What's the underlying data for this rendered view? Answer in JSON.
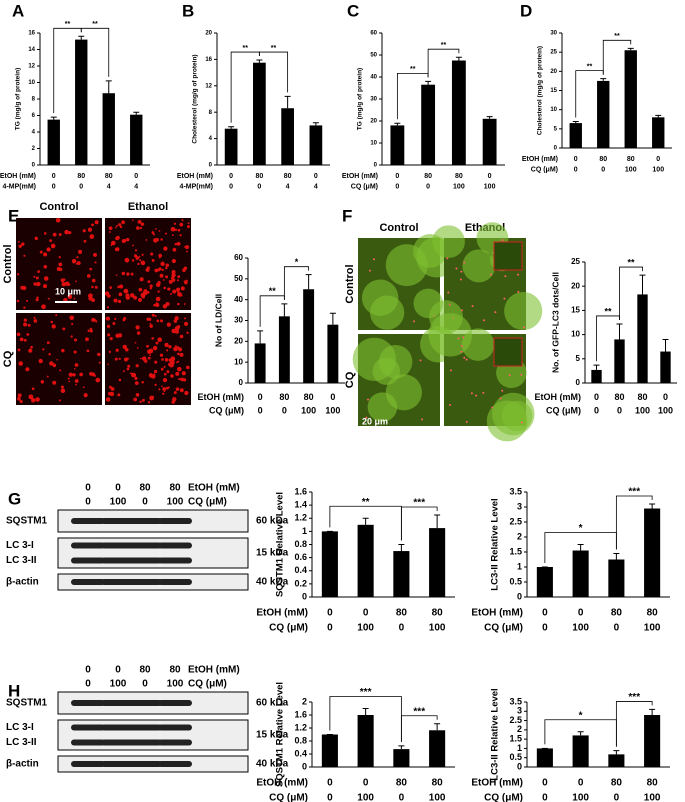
{
  "panels": [
    "A",
    "B",
    "C",
    "D",
    "E",
    "F",
    "G",
    "H"
  ],
  "chart_data": [
    {
      "type": "bar",
      "y_label": "TG (mg/g of protein)",
      "values": [
        5.5,
        15.2,
        8.7,
        6.1
      ],
      "errors": [
        0.3,
        0.4,
        1.5,
        0.3
      ],
      "color": "#000000",
      "ylim": [
        0,
        16
      ],
      "yticks": [
        0,
        2,
        4,
        6,
        8,
        10,
        12,
        14,
        16
      ],
      "conditions": [
        {
          "label": "EtOH (mM)",
          "values": [
            0,
            80,
            80,
            0
          ]
        },
        {
          "label": "4-MP(mM)",
          "values": [
            0,
            0,
            4,
            4
          ]
        }
      ],
      "significance": [
        {
          "text": "**",
          "between": [
            0,
            1
          ]
        },
        {
          "text": "**",
          "between": [
            1,
            2
          ]
        }
      ]
    },
    {
      "type": "bar",
      "y_label": "Cholesterol (mg/g of protein)",
      "values": [
        5.5,
        15.5,
        8.6,
        6.0
      ],
      "errors": [
        0.3,
        0.4,
        1.8,
        0.4
      ],
      "color": "#000000",
      "ylim": [
        0,
        20
      ],
      "yticks": [
        0,
        4,
        8,
        12,
        16,
        20
      ],
      "conditions": [
        {
          "label": "EtOH (mM)",
          "values": [
            0,
            80,
            80,
            0
          ]
        },
        {
          "label": "4-MP(mM)",
          "values": [
            0,
            0,
            4,
            4
          ]
        }
      ],
      "significance": [
        {
          "text": "**",
          "between": [
            0,
            1
          ]
        },
        {
          "text": "**",
          "between": [
            1,
            2
          ]
        }
      ]
    },
    {
      "type": "bar",
      "y_label": "TG (mg/g of protein)",
      "values": [
        18,
        36.5,
        47.5,
        21
      ],
      "errors": [
        1,
        1.5,
        1.5,
        1
      ],
      "color": "#000000",
      "ylim": [
        0,
        60
      ],
      "yticks": [
        0,
        10,
        20,
        30,
        40,
        50,
        60
      ],
      "conditions": [
        {
          "label": "EtOH (mM)",
          "values": [
            0,
            80,
            80,
            0
          ]
        },
        {
          "label": "CQ (μM)",
          "values": [
            0,
            0,
            100,
            100
          ]
        }
      ],
      "significance": [
        {
          "text": "**",
          "between": [
            0,
            1
          ]
        },
        {
          "text": "**",
          "between": [
            1,
            2
          ]
        }
      ]
    },
    {
      "type": "bar",
      "y_label": "Cholesterol (mg/g of protein)",
      "values": [
        6.5,
        17.5,
        25.5,
        8
      ],
      "errors": [
        0.4,
        0.6,
        0.5,
        0.5
      ],
      "color": "#000000",
      "ylim": [
        0,
        30
      ],
      "yticks": [
        0,
        5,
        10,
        15,
        20,
        25,
        30
      ],
      "conditions": [
        {
          "label": "EtOH (mM)",
          "values": [
            0,
            80,
            80,
            0
          ]
        },
        {
          "label": "CQ (μM)",
          "values": [
            0,
            0,
            100,
            100
          ]
        }
      ],
      "significance": [
        {
          "text": "**",
          "between": [
            0,
            1
          ]
        },
        {
          "text": "**",
          "between": [
            1,
            2
          ]
        }
      ]
    },
    {
      "type": "bar",
      "y_label": "No of LD/Cell",
      "values": [
        19,
        32,
        45,
        28
      ],
      "errors": [
        6,
        6,
        7,
        5.5
      ],
      "color": "#000000",
      "ylim": [
        0,
        60
      ],
      "yticks": [
        0,
        10,
        20,
        30,
        40,
        50,
        60
      ],
      "conditions": [
        {
          "label": "EtOH (mM)",
          "values": [
            0,
            80,
            80,
            0
          ]
        },
        {
          "label": "CQ (μM)",
          "values": [
            0,
            0,
            100,
            100
          ]
        }
      ],
      "significance": [
        {
          "text": "**",
          "between": [
            0,
            1
          ]
        },
        {
          "text": "*",
          "between": [
            1,
            2
          ]
        }
      ]
    },
    {
      "type": "bar",
      "y_label": "No. of GFP-LC3 dots/Cell",
      "values": [
        2.7,
        9,
        18.3,
        6.5
      ],
      "errors": [
        1,
        3.2,
        4,
        2.5
      ],
      "color": "#000000",
      "ylim": [
        0,
        25
      ],
      "yticks": [
        0,
        5,
        10,
        15,
        20,
        25
      ],
      "conditions": [
        {
          "label": "EtOH (mM)",
          "values": [
            0,
            80,
            80,
            0
          ]
        },
        {
          "label": "CQ (μM)",
          "values": [
            0,
            0,
            100,
            100
          ]
        }
      ],
      "significance": [
        {
          "text": "**",
          "between": [
            0,
            1
          ]
        },
        {
          "text": "**",
          "between": [
            1,
            2
          ]
        }
      ]
    },
    {
      "type": "bar",
      "y_label": "SQSTM1 Relative Level",
      "values": [
        1,
        1.1,
        0.7,
        1.05
      ],
      "errors": [
        0,
        0.1,
        0.1,
        0.2
      ],
      "color": "#000000",
      "ylim": [
        0,
        1.6
      ],
      "yticks": [
        0,
        0.2,
        0.4,
        0.6,
        0.8,
        1,
        1.2,
        1.4,
        1.6
      ],
      "conditions": [
        {
          "label": "EtOH (mM)",
          "values": [
            0,
            0,
            80,
            80
          ]
        },
        {
          "label": "CQ (μM)",
          "values": [
            0,
            100,
            0,
            100
          ]
        }
      ],
      "significance": [
        {
          "text": "**",
          "between": [
            0,
            2
          ]
        },
        {
          "text": "***",
          "between": [
            2,
            3
          ]
        }
      ]
    },
    {
      "type": "bar",
      "y_label": "LC3-II Relative Level",
      "values": [
        1,
        1.55,
        1.25,
        2.95
      ],
      "errors": [
        0,
        0.2,
        0.2,
        0.15
      ],
      "color": "#000000",
      "ylim": [
        0,
        3.5
      ],
      "yticks": [
        0,
        0.5,
        1,
        1.5,
        2,
        2.5,
        3,
        3.5
      ],
      "conditions": [
        {
          "label": "EtOH (mM)",
          "values": [
            0,
            0,
            80,
            80
          ]
        },
        {
          "label": "CQ (μM)",
          "values": [
            0,
            100,
            0,
            100
          ]
        }
      ],
      "significance": [
        {
          "text": "*",
          "between": [
            0,
            2
          ]
        },
        {
          "text": "***",
          "between": [
            2,
            3
          ]
        }
      ]
    },
    {
      "type": "bar",
      "y_label": "SQSTM1 Relative Level",
      "values": [
        1,
        1.6,
        0.55,
        1.13
      ],
      "errors": [
        0,
        0.2,
        0.1,
        0.2
      ],
      "color": "#000000",
      "ylim": [
        0,
        2
      ],
      "yticks": [
        0,
        0.4,
        0.8,
        1.2,
        1.6,
        2
      ],
      "conditions": [
        {
          "label": "EtOH (mM)",
          "values": [
            0,
            0,
            80,
            80
          ]
        },
        {
          "label": "CQ (μM)",
          "values": [
            0,
            100,
            0,
            100
          ]
        }
      ],
      "significance": [
        {
          "text": "***",
          "between": [
            0,
            2
          ]
        },
        {
          "text": "***",
          "between": [
            2,
            3
          ]
        }
      ]
    },
    {
      "type": "bar",
      "y_label": "LC3-II Relative Level",
      "values": [
        1,
        1.7,
        0.68,
        2.8
      ],
      "errors": [
        0,
        0.2,
        0.2,
        0.3
      ],
      "color": "#000000",
      "ylim": [
        0,
        3.5
      ],
      "yticks": [
        0,
        0.5,
        1,
        1.5,
        2,
        2.5,
        3,
        3.5
      ],
      "conditions": [
        {
          "label": "EtOH (mM)",
          "values": [
            0,
            0,
            80,
            80
          ]
        },
        {
          "label": "CQ (μM)",
          "values": [
            0,
            100,
            0,
            100
          ]
        }
      ],
      "significance": [
        {
          "text": "*",
          "between": [
            0,
            2
          ]
        },
        {
          "text": "***",
          "between": [
            2,
            3
          ]
        }
      ]
    }
  ],
  "micrographs": [
    {
      "columns": [
        "Control",
        "Ethanol"
      ],
      "rows": [
        "Control",
        "CQ"
      ],
      "scale_bar": "10 μm",
      "color": "red"
    },
    {
      "columns": [
        "Control",
        "Ethanol"
      ],
      "rows": [
        "Control",
        "CQ"
      ],
      "scale_bar": "20 μm",
      "color": "green"
    }
  ],
  "blots": [
    {
      "conditions": [
        {
          "label": "EtOH (mM)",
          "values": [
            0,
            0,
            80,
            80
          ]
        },
        {
          "label": "CQ (μM)",
          "values": [
            0,
            100,
            0,
            100
          ]
        }
      ],
      "bands": [
        {
          "labels": [
            "SQSTM1"
          ],
          "kda": "60 kDa"
        },
        {
          "labels": [
            "LC 3-I",
            "LC 3-II"
          ],
          "kda": "15 kDa"
        },
        {
          "labels": [
            "β-actin"
          ],
          "kda": "40 kDa"
        }
      ]
    },
    {
      "conditions": [
        {
          "label": "EtOH (mM)",
          "values": [
            0,
            0,
            80,
            80
          ]
        },
        {
          "label": "CQ (μM)",
          "values": [
            0,
            100,
            0,
            100
          ]
        }
      ],
      "bands": [
        {
          "labels": [
            "SQSTM1"
          ],
          "kda": "60 kDa"
        },
        {
          "labels": [
            "LC 3-I",
            "LC 3-II"
          ],
          "kda": "15 kDa"
        },
        {
          "labels": [
            "β-actin"
          ],
          "kda": "40 kDa"
        }
      ]
    }
  ]
}
